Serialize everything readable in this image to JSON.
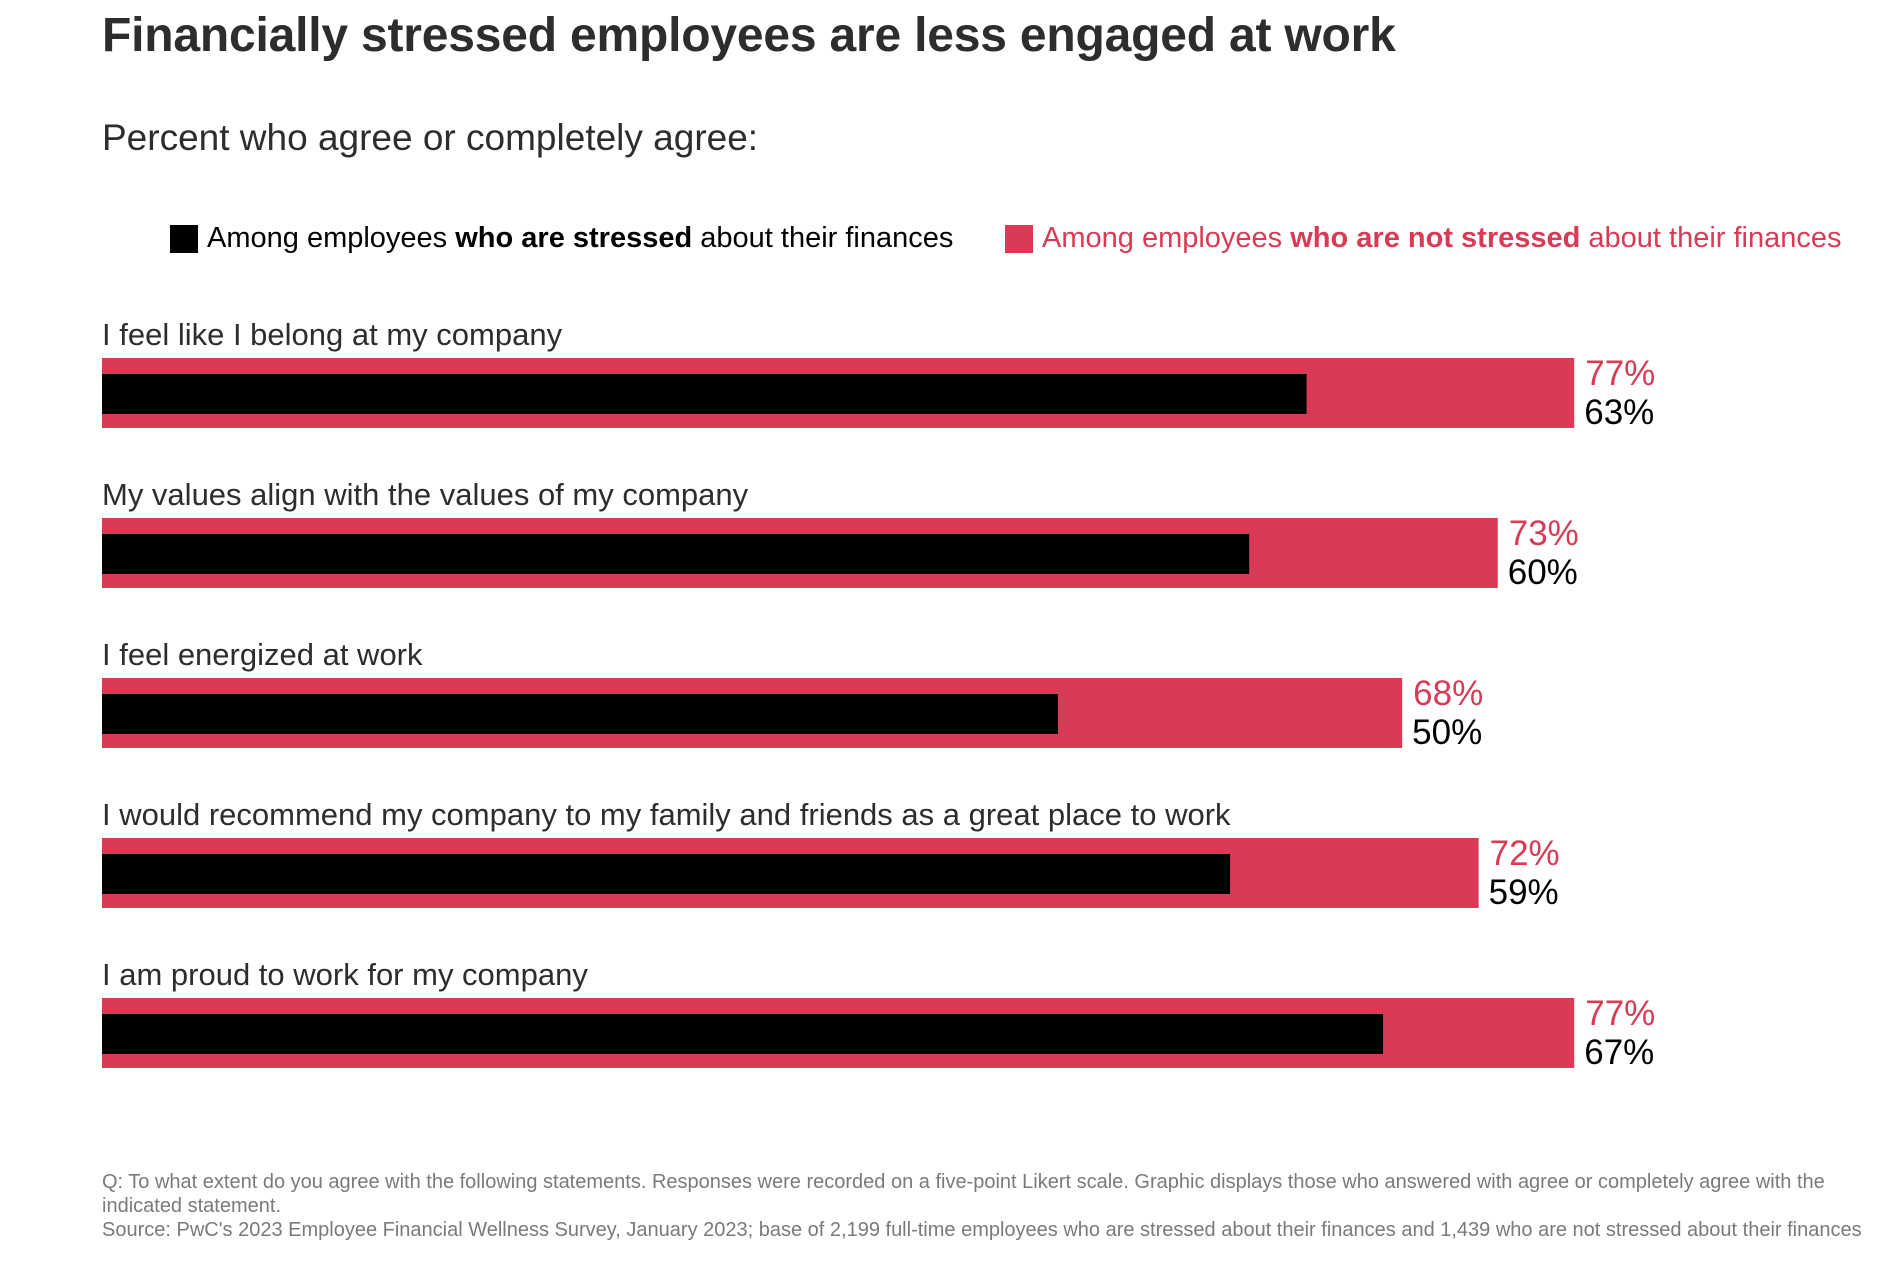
{
  "title": "Financially stressed employees are less engaged at work",
  "subtitle": "Percent who agree or completely agree:",
  "legend": {
    "stressed": {
      "pre": "Among employees ",
      "bold": "who are stressed",
      "post": " about their finances"
    },
    "not_stressed": {
      "pre": "Among employees ",
      "bold": "who are not stressed",
      "post": " about their finances"
    }
  },
  "colors": {
    "stressed": "#000000",
    "not_stressed": "#d93a55",
    "text": "#2d2d2d",
    "footnote": "#7a7a7a"
  },
  "chart_data": {
    "type": "bar",
    "orientation": "horizontal",
    "categories": [
      "I feel like I belong at my company",
      "My values align with the values of my company",
      "I feel energized at work",
      "I would recommend my company to my family and friends as a great place to work",
      "I am proud to work for my company"
    ],
    "series": [
      {
        "name": "Among employees who are not stressed about their finances",
        "values": [
          77,
          73,
          68,
          72,
          77
        ]
      },
      {
        "name": "Among employees who are stressed about their finances",
        "values": [
          63,
          60,
          50,
          59,
          67
        ]
      }
    ],
    "value_labels": {
      "not_stressed": [
        "77%",
        "73%",
        "68%",
        "72%",
        "77%"
      ],
      "stressed": [
        "63%",
        "60%",
        "50%",
        "59%",
        "67%"
      ]
    },
    "unit": "%",
    "xlim": [
      0,
      100
    ],
    "grid": false,
    "legend_position": "top"
  },
  "footnote": {
    "question": "Q: To what extent do you agree with the following statements. Responses were recorded on a five-point Likert scale. Graphic displays those who answered with agree or completely agree with the indicated statement.",
    "source": "Source: PwC's 2023 Employee Financial Wellness Survey, January 2023; base of 2,199 full-time employees who are stressed about their finances and 1,439 who are not stressed about their finances"
  }
}
